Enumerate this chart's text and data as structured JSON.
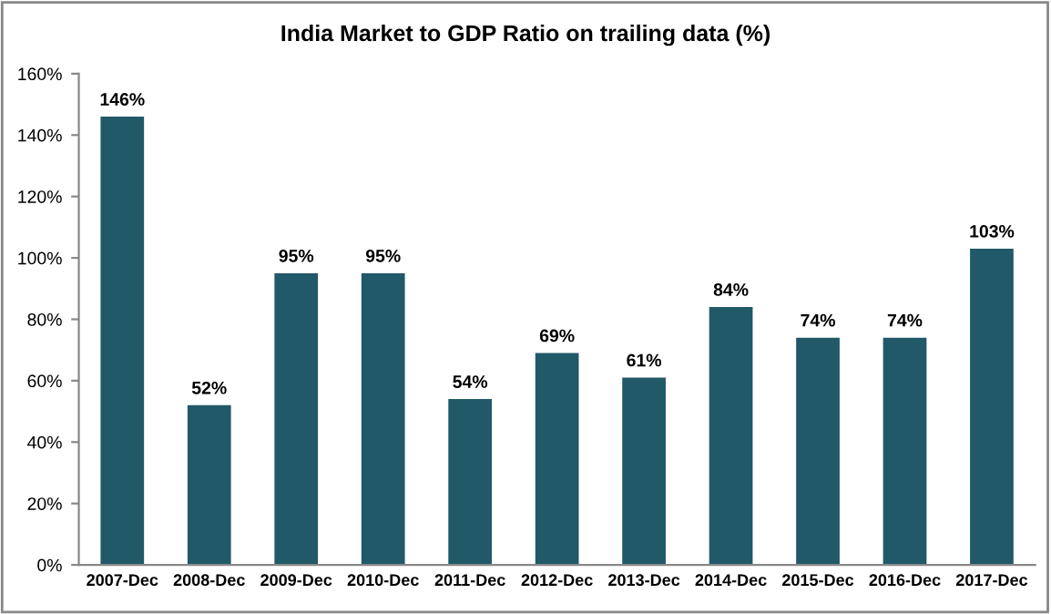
{
  "chart_data": {
    "type": "bar",
    "title": "India Market to GDP Ratio on trailing data (%)",
    "categories": [
      "2007-Dec",
      "2008-Dec",
      "2009-Dec",
      "2010-Dec",
      "2011-Dec",
      "2012-Dec",
      "2013-Dec",
      "2014-Dec",
      "2015-Dec",
      "2016-Dec",
      "2017-Dec"
    ],
    "values": [
      146,
      52,
      95,
      95,
      54,
      69,
      61,
      84,
      74,
      74,
      103
    ],
    "value_labels": [
      "146%",
      "52%",
      "95%",
      "95%",
      "54%",
      "69%",
      "61%",
      "84%",
      "74%",
      "74%",
      "103%"
    ],
    "color": "#215968",
    "ylim": [
      0,
      160
    ],
    "yticks": [
      {
        "value": 0,
        "label": "0%"
      },
      {
        "value": 20,
        "label": "20%"
      },
      {
        "value": 40,
        "label": "40%"
      },
      {
        "value": 60,
        "label": "60%"
      },
      {
        "value": 80,
        "label": "80%"
      },
      {
        "value": 100,
        "label": "100%"
      },
      {
        "value": 120,
        "label": "120%"
      },
      {
        "value": 140,
        "label": "140%"
      },
      {
        "value": 160,
        "label": "160%"
      }
    ],
    "grid": false
  }
}
